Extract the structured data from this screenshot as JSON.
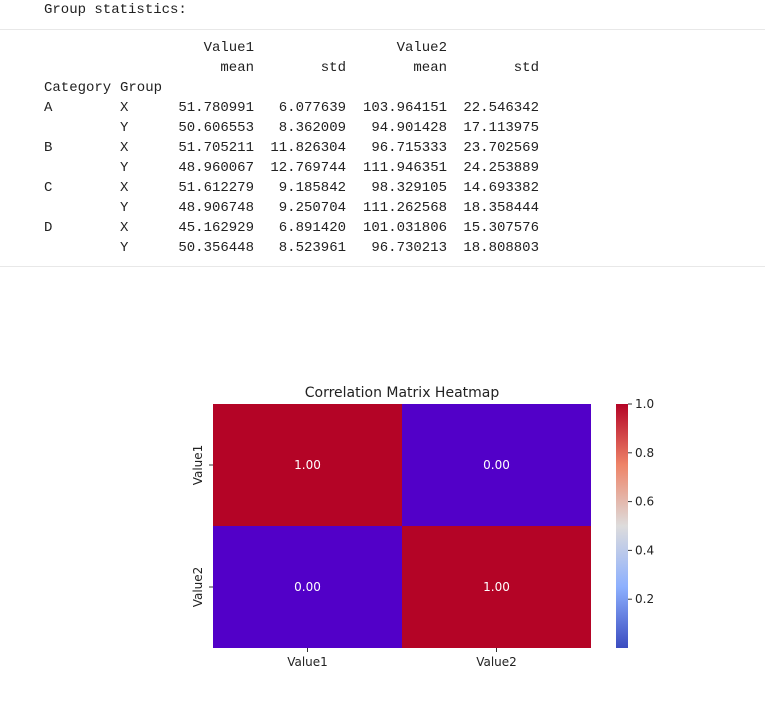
{
  "output": {
    "heading": "Group statistics:",
    "table": {
      "top_headers": [
        "Value1",
        "Value2"
      ],
      "sub_headers": [
        "mean",
        "std",
        "mean",
        "std"
      ],
      "index_names": [
        "Category",
        "Group"
      ],
      "rows": [
        {
          "category": "A",
          "group": "X",
          "v1_mean": "51.780991",
          "v1_std": "6.077639",
          "v2_mean": "103.964151",
          "v2_std": "22.546342"
        },
        {
          "category": "",
          "group": "Y",
          "v1_mean": "50.606553",
          "v1_std": "8.362009",
          "v2_mean": "94.901428",
          "v2_std": "17.113975"
        },
        {
          "category": "B",
          "group": "X",
          "v1_mean": "51.705211",
          "v1_std": "11.826304",
          "v2_mean": "96.715333",
          "v2_std": "23.702569"
        },
        {
          "category": "",
          "group": "Y",
          "v1_mean": "48.960067",
          "v1_std": "12.769744",
          "v2_mean": "111.946351",
          "v2_std": "24.253889"
        },
        {
          "category": "C",
          "group": "X",
          "v1_mean": "51.612279",
          "v1_std": "9.185842",
          "v2_mean": "98.329105",
          "v2_std": "14.693382"
        },
        {
          "category": "",
          "group": "Y",
          "v1_mean": "48.906748",
          "v1_std": "9.250704",
          "v2_mean": "111.262568",
          "v2_std": "18.358444"
        },
        {
          "category": "D",
          "group": "X",
          "v1_mean": "45.162929",
          "v1_std": "6.891420",
          "v2_mean": "101.031806",
          "v2_std": "15.307576"
        },
        {
          "category": "",
          "group": "Y",
          "v1_mean": "50.356448",
          "v1_std": "8.523961",
          "v2_mean": "96.730213",
          "v2_std": "18.808803"
        }
      ]
    }
  },
  "chart_data": {
    "type": "heatmap",
    "title": "Correlation Matrix Heatmap",
    "x_categories": [
      "Value1",
      "Value2"
    ],
    "y_categories": [
      "Value1",
      "Value2"
    ],
    "values": [
      [
        1.0,
        0.0
      ],
      [
        0.0,
        1.0
      ]
    ],
    "annotations": [
      [
        "1.00",
        "0.00"
      ],
      [
        "0.00",
        "1.00"
      ]
    ],
    "colormap": "coolwarm",
    "colorbar": {
      "ticks": [
        "1.0",
        "0.8",
        "0.6",
        "0.4",
        "0.2"
      ],
      "tick_values": [
        1.0,
        0.8,
        0.6,
        0.4,
        0.2
      ],
      "range": [
        0.0,
        1.0
      ]
    },
    "colors": {
      "high": "#b40426",
      "low": "#5200c8"
    }
  }
}
